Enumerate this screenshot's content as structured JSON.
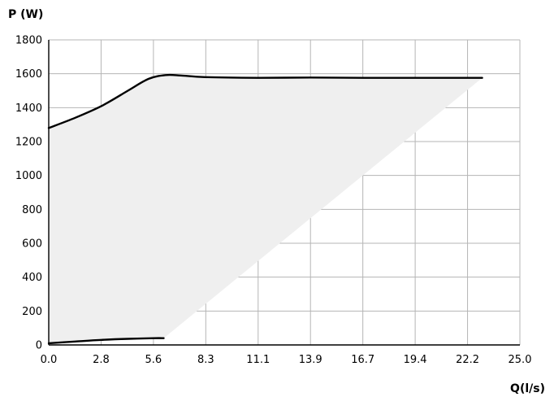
{
  "chart_data": {
    "type": "line",
    "title": "",
    "xlabel": "Q(l/s)",
    "ylabel": "P (W)",
    "xlim": [
      0,
      25.0
    ],
    "ylim": [
      0,
      1800
    ],
    "x_ticks": [
      "0.0",
      "2.8",
      "5.6",
      "8.3",
      "11.1",
      "13.9",
      "16.7",
      "19.4",
      "22.2",
      "25.0"
    ],
    "y_ticks": [
      0,
      200,
      400,
      600,
      800,
      1000,
      1200,
      1400,
      1600,
      1800
    ],
    "grid": true,
    "legend": "none",
    "series": [
      {
        "role": "max-power-curve",
        "color": "#000000",
        "points": [
          [
            0.0,
            1280
          ],
          [
            1.4,
            1340
          ],
          [
            2.8,
            1410
          ],
          [
            4.2,
            1500
          ],
          [
            5.3,
            1570
          ],
          [
            6.2,
            1592
          ],
          [
            7.0,
            1590
          ],
          [
            8.3,
            1580
          ],
          [
            11.1,
            1576
          ],
          [
            13.9,
            1578
          ],
          [
            16.7,
            1576
          ],
          [
            19.4,
            1576
          ],
          [
            23.0,
            1576
          ]
        ]
      },
      {
        "role": "min-power-curve",
        "color": "#000000",
        "points": [
          [
            0.0,
            10
          ],
          [
            1.4,
            20
          ],
          [
            2.8,
            30
          ],
          [
            4.2,
            36
          ],
          [
            5.6,
            40
          ],
          [
            6.1,
            40
          ]
        ]
      }
    ],
    "shaded_region": {
      "color": "#efefef",
      "points": [
        [
          0.0,
          1280
        ],
        [
          1.4,
          1340
        ],
        [
          2.8,
          1410
        ],
        [
          4.2,
          1500
        ],
        [
          5.3,
          1570
        ],
        [
          6.2,
          1592
        ],
        [
          7.0,
          1590
        ],
        [
          8.3,
          1580
        ],
        [
          11.1,
          1576
        ],
        [
          13.9,
          1578
        ],
        [
          16.7,
          1576
        ],
        [
          19.4,
          1576
        ],
        [
          23.0,
          1576
        ],
        [
          6.1,
          40
        ],
        [
          5.6,
          40
        ],
        [
          4.2,
          36
        ],
        [
          2.8,
          30
        ],
        [
          1.4,
          20
        ],
        [
          0.0,
          10
        ]
      ]
    }
  }
}
